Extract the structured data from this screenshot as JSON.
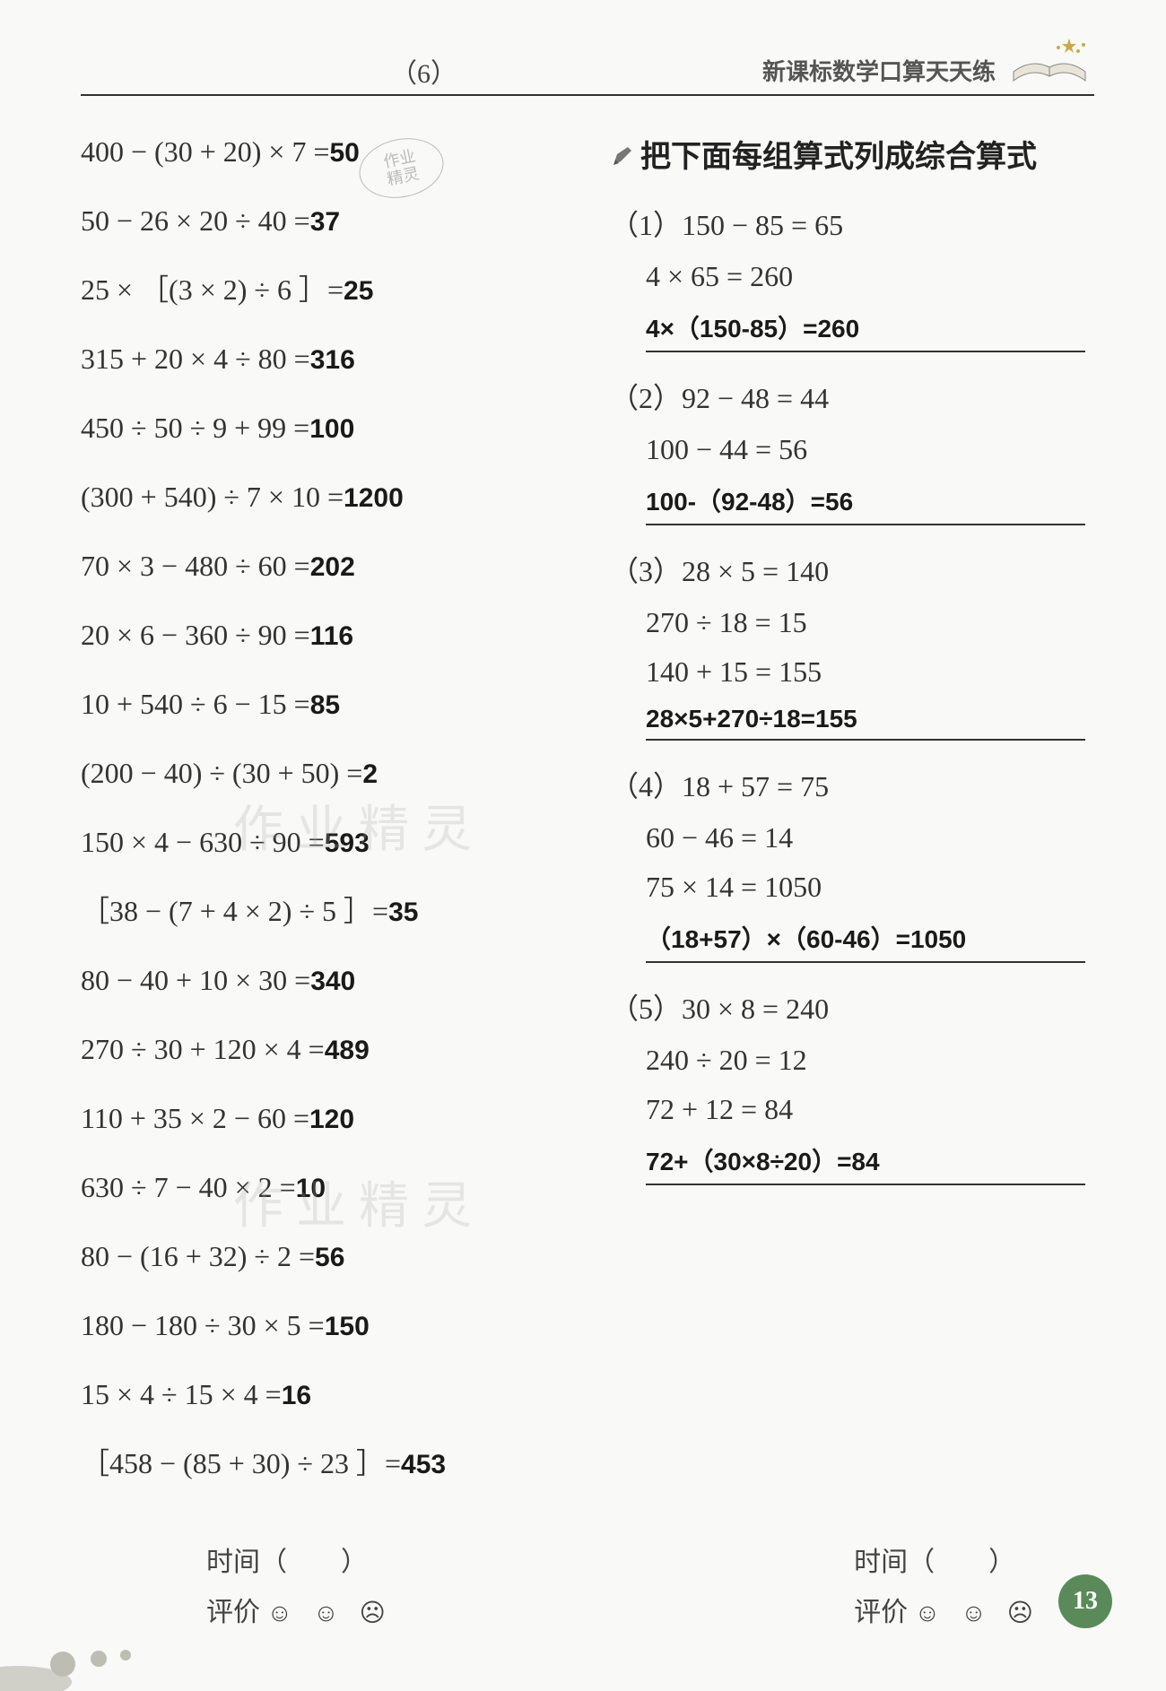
{
  "header": {
    "page_num_top": "（6）",
    "series_title": "新课标数学口算天天练"
  },
  "left_equations": [
    {
      "expr": "400 − (30 + 20) × 7 =",
      "ans": "50"
    },
    {
      "expr": "50 − 26 × 20 ÷ 40 =",
      "ans": "37"
    },
    {
      "expr": "25 × ［(3 × 2) ÷ 6 ］=",
      "ans": "25"
    },
    {
      "expr": "315 + 20 × 4 ÷ 80 =",
      "ans": "316"
    },
    {
      "expr": "450 ÷ 50 ÷ 9 + 99 =",
      "ans": "100"
    },
    {
      "expr": "(300 + 540) ÷ 7 × 10 =",
      "ans": "1200"
    },
    {
      "expr": "70 × 3 − 480 ÷ 60 =",
      "ans": "202"
    },
    {
      "expr": "20 × 6 − 360 ÷ 90 =",
      "ans": "116"
    },
    {
      "expr": "10 + 540 ÷ 6 − 15 =",
      "ans": "85"
    },
    {
      "expr": "(200 − 40) ÷ (30 + 50) =",
      "ans": "2"
    },
    {
      "expr": "150 × 4 − 630 ÷ 90 =",
      "ans": "593"
    },
    {
      "expr": "［38 − (7 + 4 × 2) ÷ 5 ］=",
      "ans": "35"
    },
    {
      "expr": "80 − 40 + 10 × 30 =",
      "ans": "340"
    },
    {
      "expr": "270 ÷ 30 + 120 × 4 =",
      "ans": "489"
    },
    {
      "expr": "110 + 35 × 2 − 60 =",
      "ans": "120"
    },
    {
      "expr": "630 ÷ 7 − 40 × 2 =",
      "ans": "10"
    },
    {
      "expr": "80 − (16 + 32) ÷ 2 =",
      "ans": "56"
    },
    {
      "expr": "180 − 180 ÷ 30 × 5 =",
      "ans": "150"
    },
    {
      "expr": "15 × 4 ÷ 15 × 4 =",
      "ans": "16"
    },
    {
      "expr": "［458 − (85 + 30) ÷ 23 ］=",
      "ans": "453"
    }
  ],
  "right_section": {
    "heading": "把下面每组算式列成综合算式",
    "problems": [
      {
        "num": "（1）",
        "steps": [
          "150 − 85 = 65",
          "4 × 65 = 260"
        ],
        "answer": "4×（150-85）=260"
      },
      {
        "num": "（2）",
        "steps": [
          "92 − 48 = 44",
          "100 − 44 = 56"
        ],
        "answer": "100-（92-48）=56"
      },
      {
        "num": "（3）",
        "steps": [
          "28 × 5 = 140",
          "270 ÷ 18 = 15",
          "140 + 15 = 155"
        ],
        "answer": "28×5+270÷18=155"
      },
      {
        "num": "（4）",
        "steps": [
          "18 + 57 = 75",
          "60 − 46 = 14",
          "75 × 14 = 1050"
        ],
        "answer": "（18+57）×（60-46）=1050"
      },
      {
        "num": "（5）",
        "steps": [
          "30 × 8 = 240",
          "240 ÷ 20 = 12",
          "72 + 12 = 84"
        ],
        "answer": "72+（30×8÷20）=84"
      }
    ]
  },
  "footer": {
    "time_label": "时间（　　）",
    "rating_label": "评价",
    "page_badge": "13"
  },
  "watermarks": {
    "w1": "作 业 精 灵",
    "w2": "作 业 精 灵",
    "stamp_l1": "作业",
    "stamp_l2": "精灵"
  },
  "colors": {
    "text": "#333333",
    "answer": "#1a1a1a",
    "badge_bg": "#5a8a5a",
    "rule": "#333333",
    "bg": "#f9f9f7"
  }
}
